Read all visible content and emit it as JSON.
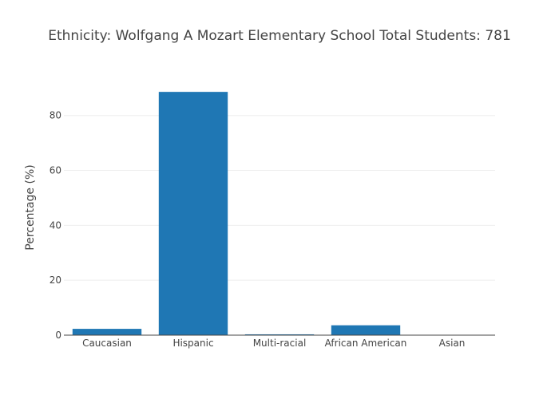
{
  "chart_data": {
    "type": "bar",
    "title": "Ethnicity: Wolfgang A Mozart Elementary School   Total Students: 781",
    "xlabel": "",
    "ylabel": "Percentage (%)",
    "categories": [
      "Caucasian",
      "Hispanic",
      "Multi-racial",
      "African American",
      "Asian"
    ],
    "values": [
      2.3,
      88.6,
      0.3,
      3.6,
      0.1
    ],
    "ylim": [
      0,
      93
    ],
    "yticks": [
      0,
      20,
      40,
      60,
      80
    ],
    "ytick_labels": [
      "0",
      "20",
      "40",
      "60",
      "80"
    ],
    "grid": true,
    "legend": "none",
    "bar_color": "#1f77b4"
  }
}
